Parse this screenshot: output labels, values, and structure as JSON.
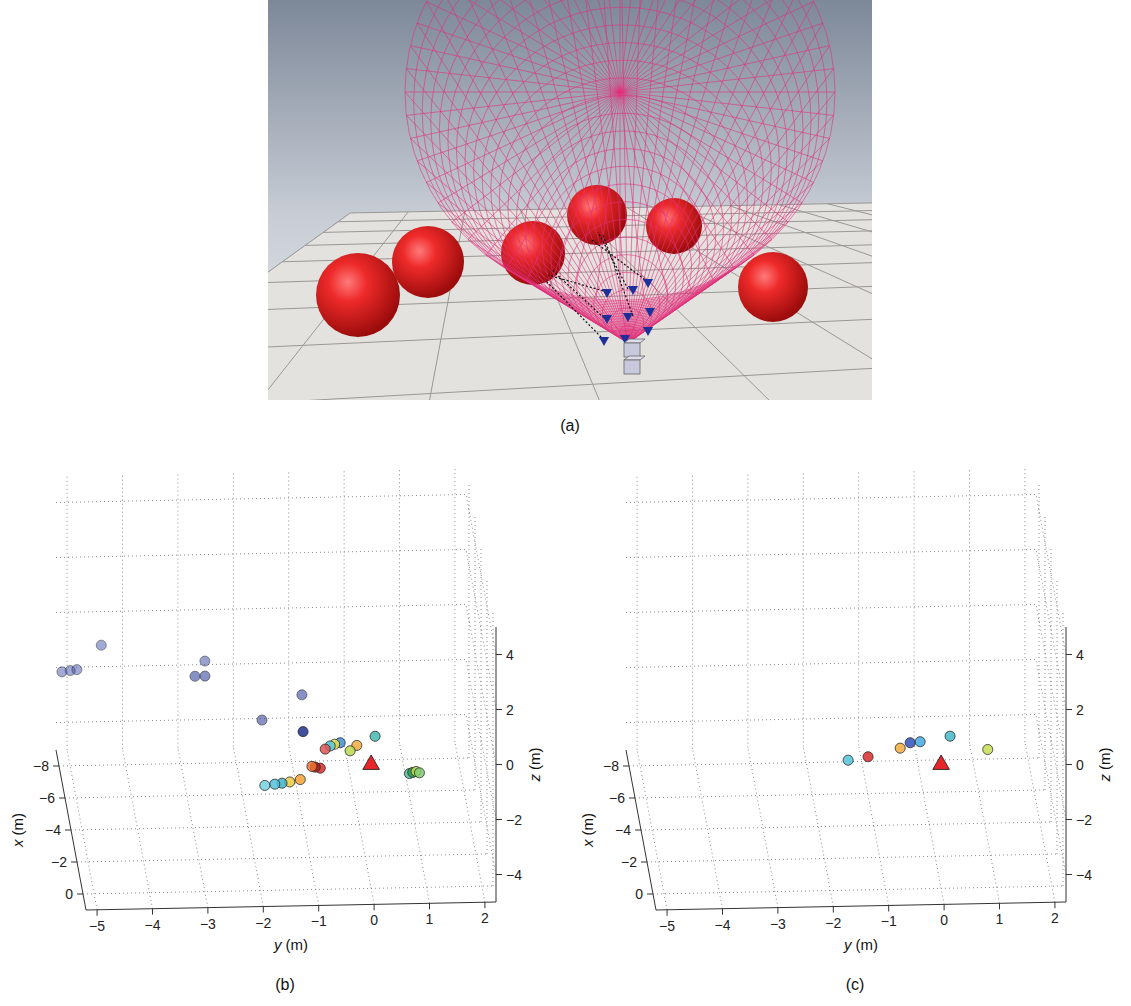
{
  "scene": {
    "label": "(a)"
  },
  "chart_data": [
    {
      "type": "scatter3d",
      "title": "(b)",
      "x_label": "x (m)",
      "y_label": "y (m)",
      "z_label": "z (m)",
      "xlim": [
        -9,
        1
      ],
      "ylim": [
        -5.2,
        2.2
      ],
      "zlim": [
        -5,
        5
      ],
      "xticks": [
        {
          "value": -8,
          "label": "−8"
        },
        {
          "value": -6,
          "label": "−6"
        },
        {
          "value": -4,
          "label": "−4"
        },
        {
          "value": -2,
          "label": "−2"
        },
        0
      ],
      "yticks": [
        {
          "value": -5,
          "label": "−5"
        },
        {
          "value": -4,
          "label": "−4"
        },
        {
          "value": -3,
          "label": "−3"
        },
        {
          "value": -2,
          "label": "−2"
        },
        {
          "value": -1,
          "label": "−1"
        },
        0,
        1,
        2
      ],
      "zticks": [
        {
          "value": -4,
          "label": "−4"
        },
        {
          "value": -2,
          "label": "−2"
        },
        0,
        2,
        4
      ],
      "grid": true,
      "series": [
        {
          "marker": "circle",
          "x": [
            -8.5,
            -8.5,
            -8.5,
            -8.5,
            -8.5,
            -7,
            -7,
            -7,
            -7,
            -2,
            -2,
            -2,
            -2,
            -2,
            -2,
            -2,
            -2,
            -2,
            -2,
            -2,
            -2,
            -2,
            -2,
            -2,
            -2,
            -2,
            -2,
            -2,
            -2
          ],
          "y": [
            -5.12,
            -4.97,
            -4.85,
            -4.41,
            -2.54,
            -2.62,
            -2.8,
            -1.59,
            -0.87,
            -1.12,
            0.18,
            -0.15,
            -0.27,
            -0.45,
            -0.55,
            -0.63,
            -0.72,
            -0.81,
            -0.9,
            -0.96,
            -1.17,
            -1.36,
            -1.5,
            -1.63,
            -1.81,
            0.8,
            0.86,
            0.92,
            0.98
          ],
          "z": [
            -1.87,
            -1.83,
            -1.8,
            -0.93,
            -1.58,
            -1.25,
            -1.25,
            -2.89,
            -2.0,
            -0.42,
            -0.64,
            -0.96,
            -1.15,
            -0.85,
            -0.9,
            -0.96,
            -1.07,
            -1.76,
            -1.72,
            -1.69,
            -2.16,
            -2.24,
            -2.28,
            -2.31,
            -2.35,
            -2.02,
            -1.98,
            -1.95,
            -2.0
          ],
          "colors": [
            "#3b4ba8",
            "#3b4ba8",
            "#3b4ba8",
            "#3b4ba8",
            "#2a3a9a",
            "#2a3a9a",
            "#2a3a9a",
            "#2a3a9a",
            "#2a3a9a",
            "#1c2c8c",
            "#3fb7b0",
            "#f2a93b",
            "#b8d84a",
            "#3c8fd8",
            "#f0e040",
            "#4fc8e0",
            "#e05050",
            "#d62828",
            "#a02020",
            "#f07030",
            "#f5a030",
            "#e8c840",
            "#40b0c8",
            "#50c0d8",
            "#70d0e0",
            "#50b8a0",
            "#2e9e4a",
            "#c6dc50",
            "#80cc70"
          ]
        },
        {
          "marker": "triangle",
          "color": "#e8262a",
          "x": [
            0
          ],
          "y": [
            0
          ],
          "z": [
            -0.5
          ]
        }
      ]
    },
    {
      "type": "scatter3d",
      "title": "(c)",
      "x_label": "x (m)",
      "y_label": "y (m)",
      "z_label": "z (m)",
      "xlim": [
        -9,
        1
      ],
      "ylim": [
        -5.2,
        2.2
      ],
      "zlim": [
        -5,
        5
      ],
      "xticks": [
        {
          "value": -8,
          "label": "−8"
        },
        {
          "value": -6,
          "label": "−6"
        },
        {
          "value": -4,
          "label": "−4"
        },
        {
          "value": -2,
          "label": "−2"
        },
        0
      ],
      "yticks": [
        {
          "value": -5,
          "label": "−5"
        },
        {
          "value": -4,
          "label": "−4"
        },
        {
          "value": -3,
          "label": "−3"
        },
        {
          "value": -2,
          "label": "−2"
        },
        {
          "value": -1,
          "label": "−1"
        },
        0,
        1,
        2
      ],
      "zticks": [
        {
          "value": -4,
          "label": "−4"
        },
        {
          "value": -2,
          "label": "−2"
        },
        0,
        2,
        4
      ],
      "grid": true,
      "series": [
        {
          "marker": "circle",
          "x": [
            -2,
            -2,
            -2,
            -2,
            -2,
            -2,
            -2
          ],
          "y": [
            -1.57,
            -1.21,
            -0.63,
            -0.45,
            -0.27,
            0.27,
            0.95
          ],
          "z": [
            -1.44,
            -1.33,
            -1.04,
            -0.85,
            -0.82,
            -0.64,
            -1.15
          ],
          "colors": [
            "#4fc3d9",
            "#d62828",
            "#f2a93b",
            "#2e4fb8",
            "#3fa7e0",
            "#3fb7c8",
            "#c6dc50"
          ]
        },
        {
          "marker": "triangle",
          "color": "#e8262a",
          "x": [
            0
          ],
          "y": [
            0
          ],
          "z": [
            -0.5
          ]
        }
      ]
    }
  ]
}
